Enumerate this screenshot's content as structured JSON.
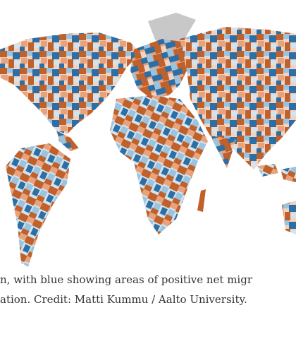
{
  "caption": {
    "lines": [
      "n, with blue showing areas of positive net migr",
      "ation. Credit: Matti Kummu / Aalto University."
    ]
  }
}
